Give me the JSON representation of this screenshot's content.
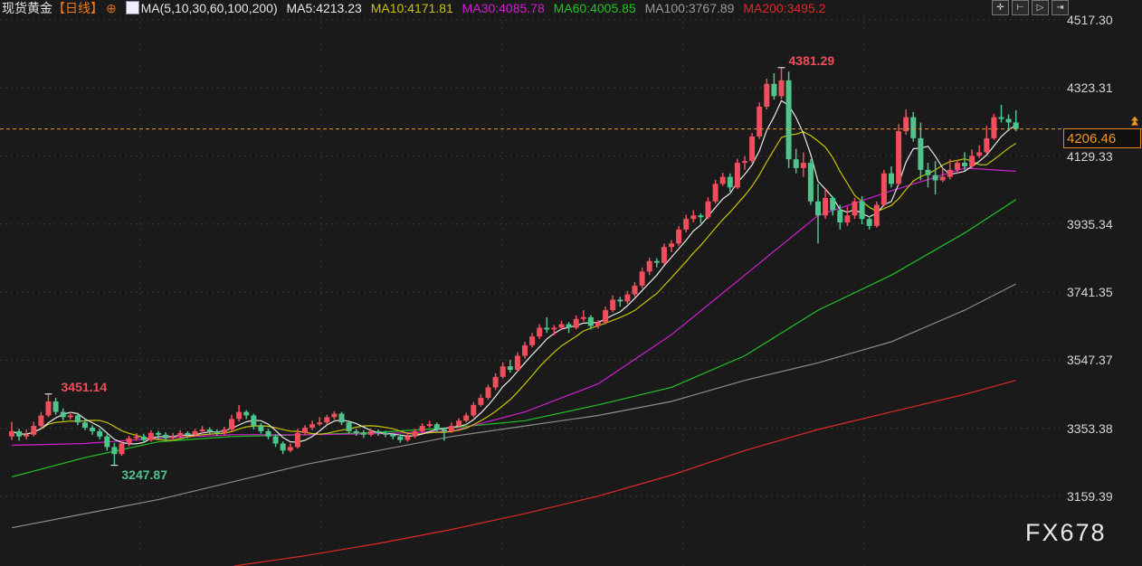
{
  "header": {
    "symbol": "现货黄金",
    "period": "【日线】",
    "ma_def": "MA(5,10,30,60,100,200)",
    "ma5": "MA5:4213.23",
    "ma10": "MA10:4171.81",
    "ma30": "MA30:4085.78",
    "ma60": "MA60:4005.85",
    "ma100": "MA100:3767.89",
    "ma200": "MA200:3495.2"
  },
  "toolbar": [
    {
      "icon": "crosshair-icon",
      "glyph": "✛"
    },
    {
      "icon": "axis-zoom-icon",
      "glyph": "⊢"
    },
    {
      "icon": "play-icon",
      "glyph": "▷"
    },
    {
      "icon": "exit-icon",
      "glyph": "⇥"
    }
  ],
  "watermark": "FX678",
  "colors": {
    "up": "#f04e5c",
    "down": "#4fc48c",
    "ma5": "#e8e8e8",
    "ma10": "#c8c400",
    "ma30": "#d01fd0",
    "ma60": "#22c422",
    "ma100": "#8c8c8c",
    "ma200": "#e02828",
    "last": "#f0952a",
    "bg": "#1a1a1a"
  },
  "chart_data": {
    "type": "candlestick",
    "ylim": [
      3050,
      4560
    ],
    "yticks": [
      "4517.30",
      "4323.31",
      "4129.33",
      "3935.34",
      "3741.35",
      "3547.37",
      "3353.38",
      "3159.39"
    ],
    "last_price": "4206.46",
    "annotations": {
      "high": "4381.29",
      "left_high": "3451.14",
      "low": "3247.87"
    },
    "candles": [
      [
        3330,
        3372,
        3320,
        3345
      ],
      [
        3345,
        3352,
        3318,
        3330
      ],
      [
        3330,
        3350,
        3322,
        3335
      ],
      [
        3335,
        3372,
        3330,
        3360
      ],
      [
        3360,
        3400,
        3352,
        3390
      ],
      [
        3390,
        3451.14,
        3385,
        3430
      ],
      [
        3430,
        3440,
        3392,
        3400
      ],
      [
        3400,
        3410,
        3375,
        3385
      ],
      [
        3385,
        3400,
        3378,
        3390
      ],
      [
        3390,
        3398,
        3362,
        3370
      ],
      [
        3370,
        3380,
        3348,
        3355
      ],
      [
        3355,
        3362,
        3335,
        3345
      ],
      [
        3345,
        3352,
        3322,
        3330
      ],
      [
        3330,
        3336,
        3290,
        3300
      ],
      [
        3300,
        3312,
        3247.87,
        3280
      ],
      [
        3280,
        3318,
        3275,
        3310
      ],
      [
        3310,
        3332,
        3302,
        3325
      ],
      [
        3325,
        3340,
        3318,
        3330
      ],
      [
        3330,
        3338,
        3312,
        3320
      ],
      [
        3320,
        3348,
        3315,
        3340
      ],
      [
        3340,
        3346,
        3322,
        3335
      ],
      [
        3335,
        3342,
        3315,
        3325
      ],
      [
        3325,
        3340,
        3318,
        3330
      ],
      [
        3330,
        3348,
        3325,
        3340
      ],
      [
        3340,
        3345,
        3325,
        3335
      ],
      [
        3335,
        3352,
        3330,
        3345
      ],
      [
        3345,
        3360,
        3338,
        3350
      ],
      [
        3350,
        3356,
        3336,
        3345
      ],
      [
        3345,
        3350,
        3332,
        3340
      ],
      [
        3340,
        3358,
        3335,
        3350
      ],
      [
        3350,
        3392,
        3345,
        3380
      ],
      [
        3380,
        3420,
        3372,
        3400
      ],
      [
        3400,
        3405,
        3380,
        3390
      ],
      [
        3390,
        3395,
        3350,
        3360
      ],
      [
        3360,
        3368,
        3338,
        3345
      ],
      [
        3345,
        3352,
        3322,
        3330
      ],
      [
        3330,
        3336,
        3300,
        3310
      ],
      [
        3310,
        3316,
        3280,
        3290
      ],
      [
        3290,
        3310,
        3285,
        3300
      ],
      [
        3300,
        3352,
        3296,
        3340
      ],
      [
        3340,
        3362,
        3334,
        3355
      ],
      [
        3355,
        3375,
        3348,
        3365
      ],
      [
        3365,
        3385,
        3360,
        3370
      ],
      [
        3370,
        3392,
        3364,
        3385
      ],
      [
        3385,
        3402,
        3378,
        3395
      ],
      [
        3395,
        3400,
        3362,
        3370
      ],
      [
        3370,
        3376,
        3338,
        3345
      ],
      [
        3345,
        3352,
        3332,
        3340
      ],
      [
        3340,
        3348,
        3326,
        3335
      ],
      [
        3335,
        3352,
        3330,
        3345
      ],
      [
        3345,
        3350,
        3332,
        3340
      ],
      [
        3340,
        3346,
        3328,
        3335
      ],
      [
        3335,
        3340,
        3322,
        3330
      ],
      [
        3330,
        3336,
        3312,
        3320
      ],
      [
        3320,
        3338,
        3315,
        3330
      ],
      [
        3330,
        3352,
        3325,
        3345
      ],
      [
        3345,
        3368,
        3340,
        3360
      ],
      [
        3360,
        3375,
        3355,
        3365
      ],
      [
        3365,
        3370,
        3342,
        3350
      ],
      [
        3350,
        3356,
        3318,
        3345
      ],
      [
        3345,
        3370,
        3340,
        3360
      ],
      [
        3360,
        3382,
        3354,
        3375
      ],
      [
        3375,
        3398,
        3370,
        3390
      ],
      [
        3390,
        3428,
        3385,
        3420
      ],
      [
        3420,
        3450,
        3415,
        3440
      ],
      [
        3440,
        3478,
        3434,
        3470
      ],
      [
        3470,
        3510,
        3462,
        3500
      ],
      [
        3500,
        3542,
        3495,
        3530
      ],
      [
        3530,
        3548,
        3512,
        3520
      ],
      [
        3520,
        3570,
        3515,
        3560
      ],
      [
        3560,
        3600,
        3552,
        3590
      ],
      [
        3590,
        3625,
        3584,
        3615
      ],
      [
        3615,
        3650,
        3608,
        3640
      ],
      [
        3640,
        3670,
        3625,
        3635
      ],
      [
        3635,
        3648,
        3618,
        3640
      ],
      [
        3640,
        3660,
        3634,
        3650
      ],
      [
        3650,
        3656,
        3625,
        3640
      ],
      [
        3640,
        3675,
        3635,
        3665
      ],
      [
        3665,
        3690,
        3658,
        3670
      ],
      [
        3670,
        3676,
        3635,
        3645
      ],
      [
        3645,
        3662,
        3638,
        3655
      ],
      [
        3655,
        3700,
        3650,
        3690
      ],
      [
        3690,
        3732,
        3684,
        3720
      ],
      [
        3720,
        3728,
        3700,
        3715
      ],
      [
        3715,
        3745,
        3708,
        3735
      ],
      [
        3735,
        3770,
        3728,
        3760
      ],
      [
        3760,
        3812,
        3752,
        3800
      ],
      [
        3800,
        3840,
        3790,
        3830
      ],
      [
        3830,
        3838,
        3812,
        3825
      ],
      [
        3825,
        3880,
        3820,
        3870
      ],
      [
        3870,
        3890,
        3855,
        3880
      ],
      [
        3880,
        3930,
        3874,
        3920
      ],
      [
        3920,
        3962,
        3912,
        3950
      ],
      [
        3950,
        3975,
        3940,
        3960
      ],
      [
        3960,
        3966,
        3938,
        3955
      ],
      [
        3955,
        4012,
        3950,
        4000
      ],
      [
        4000,
        4062,
        3994,
        4050
      ],
      [
        4050,
        4082,
        4044,
        4070
      ],
      [
        4070,
        4080,
        4028,
        4040
      ],
      [
        4040,
        4122,
        4035,
        4110
      ],
      [
        4110,
        4128,
        4090,
        4115
      ],
      [
        4115,
        4195,
        4108,
        4185
      ],
      [
        4185,
        4282,
        4178,
        4270
      ],
      [
        4270,
        4350,
        4262,
        4335
      ],
      [
        4335,
        4365,
        4290,
        4300
      ],
      [
        4300,
        4381.29,
        4292,
        4345
      ],
      [
        4345,
        4370,
        4095,
        4120
      ],
      [
        4120,
        4150,
        4080,
        4095
      ],
      [
        4095,
        4140,
        4070,
        4110
      ],
      [
        4110,
        4120,
        3990,
        4000
      ],
      [
        4000,
        4050,
        3880,
        3960
      ],
      [
        3960,
        4035,
        3950,
        4010
      ],
      [
        4010,
        4015,
        3960,
        3975
      ],
      [
        3975,
        3990,
        3920,
        3940
      ],
      [
        3940,
        3985,
        3930,
        3960
      ],
      [
        3960,
        4010,
        3950,
        4000
      ],
      [
        4000,
        4015,
        3935,
        3950
      ],
      [
        3950,
        3958,
        3920,
        3930
      ],
      [
        3930,
        4000,
        3925,
        3990
      ],
      [
        3990,
        4090,
        3985,
        4080
      ],
      [
        4080,
        4100,
        4040,
        4050
      ],
      [
        4050,
        4220,
        4045,
        4200
      ],
      [
        4200,
        4262,
        4190,
        4240
      ],
      [
        4240,
        4255,
        4170,
        4180
      ],
      [
        4180,
        4225,
        4060,
        4090
      ],
      [
        4090,
        4110,
        4040,
        4075
      ],
      [
        4075,
        4115,
        4020,
        4060
      ],
      [
        4060,
        4095,
        4055,
        4070
      ],
      [
        4070,
        4120,
        4062,
        4090
      ],
      [
        4090,
        4118,
        4080,
        4110
      ],
      [
        4110,
        4140,
        4088,
        4100
      ],
      [
        4100,
        4148,
        4094,
        4130
      ],
      [
        4130,
        4160,
        4124,
        4140
      ],
      [
        4140,
        4215,
        4135,
        4180
      ],
      [
        4180,
        4250,
        4175,
        4240
      ],
      [
        4240,
        4275,
        4225,
        4235
      ],
      [
        4235,
        4248,
        4200,
        4225
      ],
      [
        4225,
        4260,
        4200,
        4206.46
      ]
    ],
    "ma_sample_index": [
      0,
      10,
      20,
      30,
      40,
      50,
      60,
      70,
      80,
      90,
      100,
      110,
      120,
      130,
      137
    ],
    "ma30": [
      3305,
      3310,
      3325,
      3335,
      3335,
      3338,
      3345,
      3400,
      3480,
      3620,
      3790,
      3960,
      4030,
      4095,
      4086
    ],
    "ma60": [
      3215,
      3270,
      3315,
      3330,
      3335,
      3342,
      3355,
      3375,
      3420,
      3470,
      3560,
      3690,
      3790,
      3910,
      4005
    ],
    "ma100": [
      3070,
      3110,
      3150,
      3200,
      3250,
      3290,
      3330,
      3360,
      3390,
      3430,
      3490,
      3540,
      3600,
      3690,
      3765
    ],
    "ma200": [
      2870,
      2890,
      2915,
      2960,
      2990,
      3025,
      3065,
      3110,
      3160,
      3220,
      3290,
      3350,
      3400,
      3450,
      3490
    ]
  }
}
